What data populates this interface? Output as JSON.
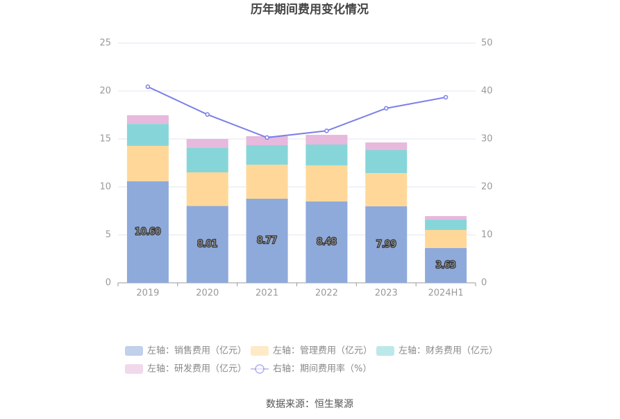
{
  "chart_data": {
    "type": "bar",
    "stacked": true,
    "title": "历年期间费用变化情况",
    "categories": [
      "2019",
      "2020",
      "2021",
      "2022",
      "2023",
      "2024H1"
    ],
    "series": [
      {
        "name": "左轴：销售费用（亿元）",
        "color": "#8eaadb",
        "values": [
          10.6,
          8.01,
          8.77,
          8.48,
          7.99,
          3.63
        ],
        "value_labels": [
          "10.60",
          "8.01",
          "8.77",
          "8.48",
          "7.99",
          "3.63"
        ]
      },
      {
        "name": "左轴：管理费用（亿元）",
        "color": "#ffd899",
        "values": [
          3.68,
          3.51,
          3.55,
          3.77,
          3.46,
          1.88
        ]
      },
      {
        "name": "左轴：财务费用（亿元）",
        "color": "#86d6d9",
        "values": [
          2.3,
          2.54,
          2.03,
          2.17,
          2.39,
          1.08
        ]
      },
      {
        "name": "左轴：研发费用（亿元）",
        "color": "#e6b9dd",
        "values": [
          0.9,
          0.94,
          0.94,
          1.01,
          0.8,
          0.37
        ]
      },
      {
        "name": "右轴：期间费用率（%）",
        "type": "line",
        "axis": "y2",
        "color": "#7b7fe8",
        "values": [
          40.9,
          35.1,
          30.3,
          31.7,
          36.4,
          38.7
        ]
      }
    ],
    "ylim": [
      0,
      25
    ],
    "yticks": [
      0,
      5,
      10,
      15,
      20,
      25
    ],
    "y2lim": [
      0,
      50
    ],
    "y2ticks": [
      0,
      10,
      20,
      30,
      40,
      50
    ],
    "grid": true,
    "source": "数据来源：恒生聚源"
  }
}
